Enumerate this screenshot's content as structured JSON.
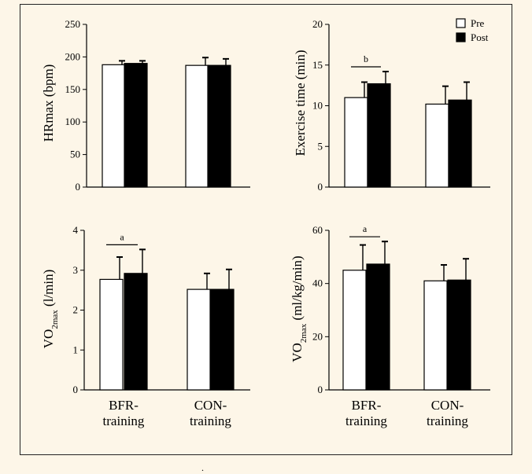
{
  "legend": {
    "pre": "Pre",
    "post": "Post"
  },
  "footer_mark": ".",
  "chart_data": [
    {
      "type": "bar",
      "ylabel": "HRmax (bpm)",
      "ylim": [
        0,
        250
      ],
      "yticks": [
        0,
        50,
        100,
        150,
        200,
        250
      ],
      "categories": [
        [
          "BFR-",
          "training"
        ],
        [
          "CON-",
          "training"
        ]
      ],
      "series": [
        {
          "name": "Pre",
          "values": [
            188,
            187
          ],
          "errors": [
            6,
            12
          ]
        },
        {
          "name": "Post",
          "values": [
            190,
            187
          ],
          "errors": [
            4,
            10
          ]
        }
      ],
      "annotation": null,
      "legend": false
    },
    {
      "type": "bar",
      "ylabel": "Exercise time (min)",
      "ylim": [
        0,
        20
      ],
      "yticks": [
        0,
        5,
        10,
        15,
        20
      ],
      "categories": [
        [
          "BFR-",
          "training"
        ],
        [
          "CON-",
          "training"
        ]
      ],
      "series": [
        {
          "name": "Pre",
          "values": [
            11.0,
            10.2
          ],
          "errors": [
            1.9,
            2.2
          ]
        },
        {
          "name": "Post",
          "values": [
            12.7,
            10.7
          ],
          "errors": [
            1.5,
            2.2
          ]
        }
      ],
      "annotation": {
        "text": "b",
        "group": 0
      },
      "legend": true
    },
    {
      "type": "bar",
      "ylabel_main": "VO",
      "ylabel_sub": "2max",
      "ylabel_unit": " (l/min)",
      "ylim": [
        0,
        4
      ],
      "yticks": [
        0,
        1,
        2,
        3,
        4
      ],
      "categories": [
        [
          "BFR-",
          "training"
        ],
        [
          "CON-",
          "training"
        ]
      ],
      "series": [
        {
          "name": "Pre",
          "values": [
            2.77,
            2.52
          ],
          "errors": [
            0.56,
            0.4
          ]
        },
        {
          "name": "Post",
          "values": [
            2.92,
            2.52
          ],
          "errors": [
            0.6,
            0.5
          ]
        }
      ],
      "annotation": {
        "text": "a",
        "group": 0
      },
      "legend": false
    },
    {
      "type": "bar",
      "ylabel_main": "VO",
      "ylabel_sub": "2max",
      "ylabel_unit": " (ml/kg/min)",
      "ylim": [
        0,
        60
      ],
      "yticks": [
        0,
        20,
        40,
        60
      ],
      "categories": [
        [
          "BFR-",
          "training"
        ],
        [
          "CON-",
          "training"
        ]
      ],
      "series": [
        {
          "name": "Pre",
          "values": [
            45,
            41
          ],
          "errors": [
            9.5,
            6
          ]
        },
        {
          "name": "Post",
          "values": [
            47.3,
            41.3
          ],
          "errors": [
            8.5,
            8
          ]
        }
      ],
      "annotation": {
        "text": "a",
        "group": 0
      },
      "legend": false
    }
  ]
}
